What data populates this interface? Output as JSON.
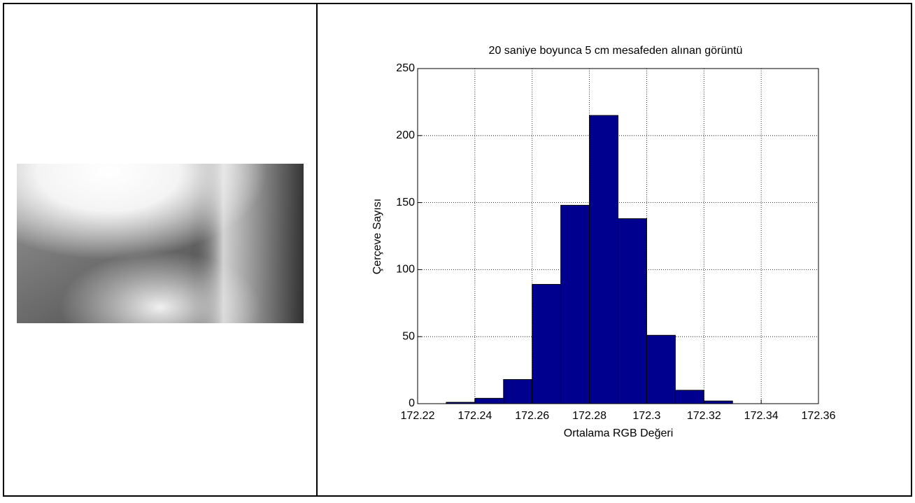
{
  "chart_data": {
    "type": "histogram",
    "title": "20 saniye  boyunca 5 cm mesafeden alınan görüntü",
    "x_label": "Ortalama RGB Değeri",
    "y_label": "Çerçeve Sayısı",
    "bins": [
      172.23,
      172.24,
      172.25,
      172.26,
      172.27,
      172.28,
      172.29,
      172.3,
      172.31,
      172.32,
      172.33
    ],
    "values": [
      1,
      4,
      18,
      89,
      148,
      215,
      138,
      51,
      10,
      2
    ],
    "color": "#00008f",
    "xlim": [
      172.22,
      172.36
    ],
    "xticks": [
      172.22,
      172.24,
      172.26,
      172.28,
      172.3,
      172.32,
      172.34,
      172.36
    ],
    "ylim": [
      0,
      250
    ],
    "yticks": [
      0,
      50,
      100,
      150,
      200,
      250
    ],
    "grid": true
  }
}
